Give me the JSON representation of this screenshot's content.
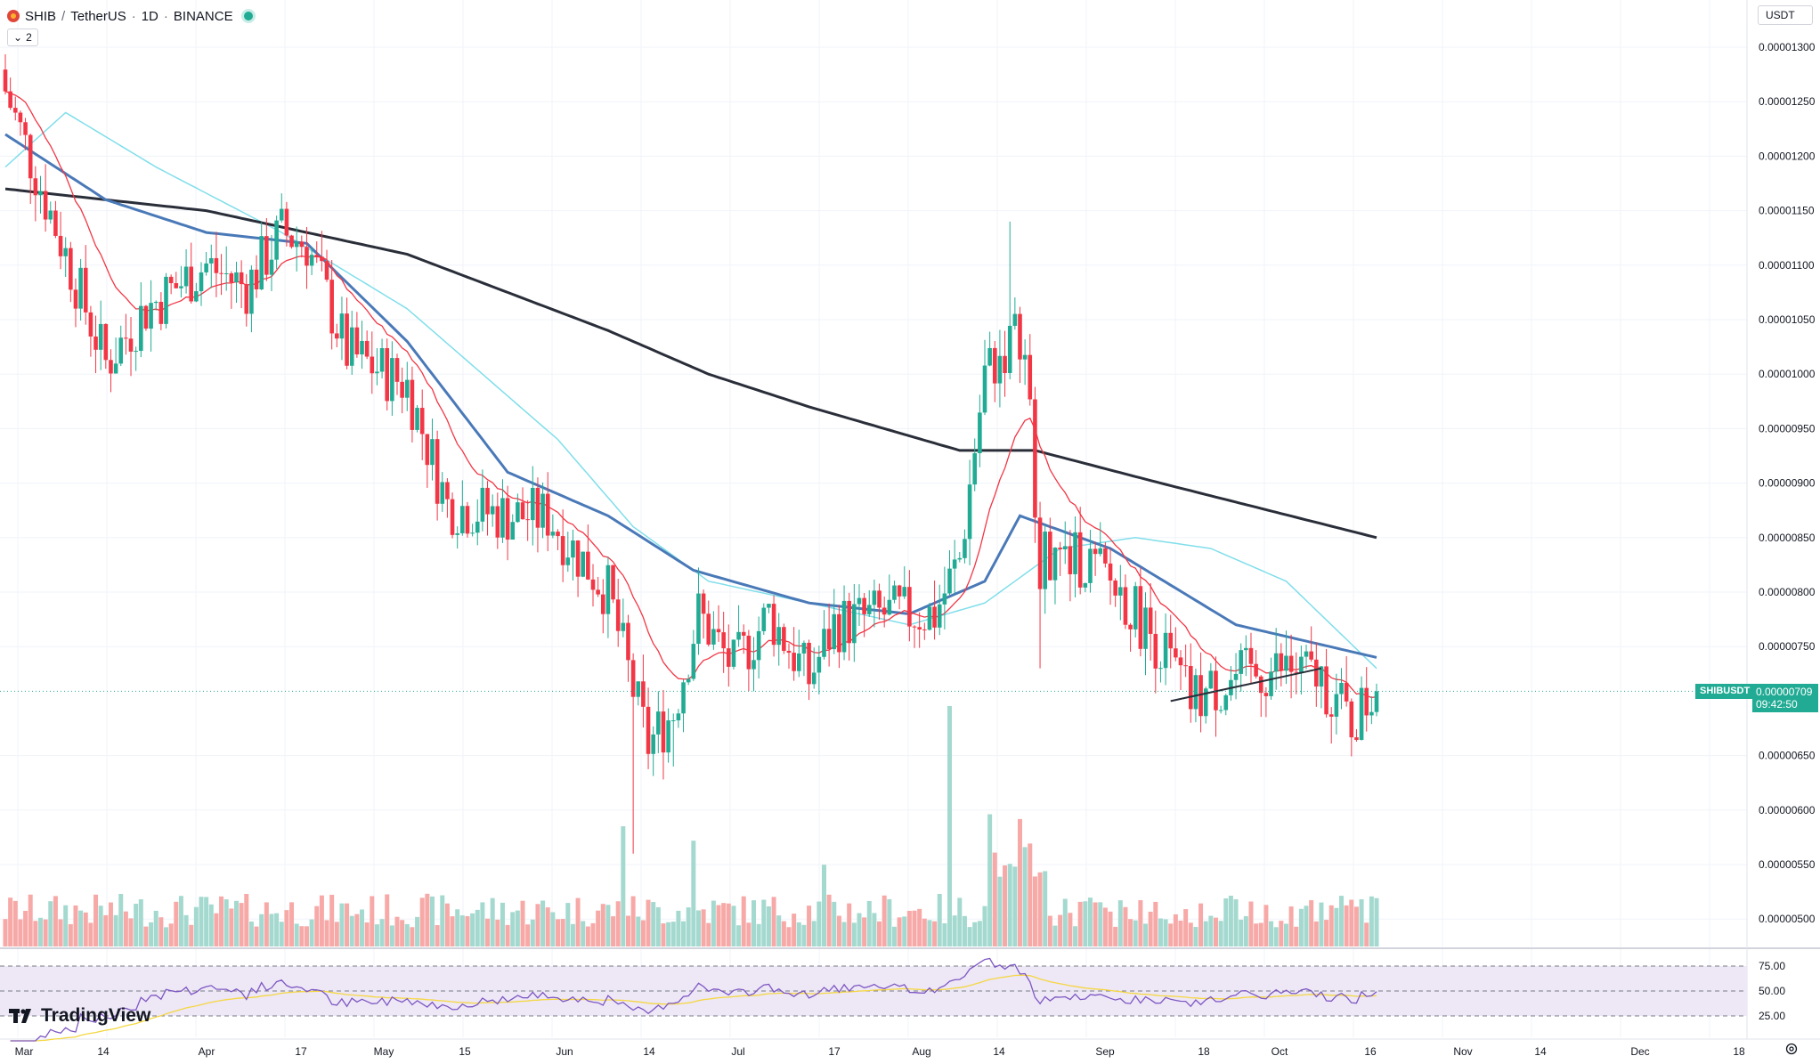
{
  "header": {
    "symbol": "SHIB",
    "pair": "TetherUS",
    "interval": "1D",
    "exchange": "BINANCE",
    "indicator_count": "2"
  },
  "currency_selector": "USDT",
  "last_price": {
    "symbol_label": "SHIBUSDT",
    "value": "0.00000709",
    "countdown": "09:42:50"
  },
  "price_axis_labels": [
    "0.00001300",
    "0.00001250",
    "0.00001200",
    "0.00001150",
    "0.00001100",
    "0.00001050",
    "0.00001000",
    "0.00000950",
    "0.00000900",
    "0.00000850",
    "0.00000800",
    "0.00000750",
    "0.00000650",
    "0.00000600",
    "0.00000550",
    "0.00000500"
  ],
  "rsi_axis_labels": [
    "75.00",
    "50.00",
    "25.00"
  ],
  "time_axis_labels": [
    "Mar",
    "14",
    "Apr",
    "17",
    "May",
    "15",
    "Jun",
    "14",
    "Jul",
    "17",
    "Aug",
    "14",
    "Sep",
    "18",
    "Oct",
    "16",
    "Nov",
    "14",
    "Dec",
    "18"
  ],
  "branding": {
    "name": "TradingView"
  },
  "colors": {
    "up": "#22ab94",
    "down": "#f23645",
    "ma_fast": "#f23645",
    "ma_mid": "#4a79b8",
    "ma_light": "#80deea",
    "ma_slow": "#2a2e39",
    "rsi_line": "#7e57c2",
    "rsi_ma": "#f5d742",
    "rsi_band": "#ede7f6"
  },
  "icons": {
    "settings": "gear-icon",
    "symbol": "shib-logo-icon",
    "status": "market-open-dot"
  },
  "chart_data": {
    "type": "candlestick",
    "x_range_days": {
      "first": "2023-02-28",
      "last_candle": "2023-10-16"
    },
    "ylim": [
      4.5e-06,
      1.33e-05
    ],
    "milestones": [
      {
        "day": 0,
        "close": 1.26e-05
      },
      {
        "day": 8,
        "close": 1.16e-05
      },
      {
        "day": 20,
        "close": 1.01e-05
      },
      {
        "day": 28,
        "close": 1.06e-05
      },
      {
        "day": 40,
        "close": 1.1e-05
      },
      {
        "day": 48,
        "close": 1.08e-05
      },
      {
        "day": 55,
        "close": 1.13e-05
      },
      {
        "day": 60,
        "close": 1.12e-05
      },
      {
        "day": 68,
        "close": 1.02e-05
      },
      {
        "day": 80,
        "close": 9.9e-06
      },
      {
        "day": 88,
        "close": 8.8e-06
      },
      {
        "day": 100,
        "close": 8.7e-06
      },
      {
        "day": 108,
        "close": 8.7e-06
      },
      {
        "day": 113,
        "close": 8.4e-06
      },
      {
        "day": 120,
        "close": 8e-06
      },
      {
        "day": 125,
        "close": 7.1e-06
      },
      {
        "day": 128,
        "close": 6.6e-06
      },
      {
        "day": 133,
        "close": 6.9e-06
      },
      {
        "day": 138,
        "close": 7.8e-06
      },
      {
        "day": 145,
        "close": 7.3e-06
      },
      {
        "day": 152,
        "close": 7.8e-06
      },
      {
        "day": 160,
        "close": 7.2e-06
      },
      {
        "day": 165,
        "close": 7.7e-06
      },
      {
        "day": 175,
        "close": 7.8e-06
      },
      {
        "day": 185,
        "close": 7.8e-06
      },
      {
        "day": 190,
        "close": 8.3e-06
      },
      {
        "day": 195,
        "close": 1e-05
      },
      {
        "day": 202,
        "close": 1.04e-05
      },
      {
        "day": 204,
        "close": 9.6e-06
      },
      {
        "day": 206,
        "close": 8.3e-06
      },
      {
        "day": 215,
        "close": 8.3e-06
      },
      {
        "day": 222,
        "close": 8e-06
      },
      {
        "day": 230,
        "close": 7.5e-06
      },
      {
        "day": 236,
        "close": 7e-06
      },
      {
        "day": 245,
        "close": 7.2e-06
      },
      {
        "day": 255,
        "close": 7.3e-06
      },
      {
        "day": 262,
        "close": 7.2e-06
      },
      {
        "day": 268,
        "close": 6.8e-06
      },
      {
        "day": 273,
        "close": 7.09e-06
      }
    ],
    "ma_slow_points": [
      [
        0,
        1.17e-05
      ],
      [
        40,
        1.15e-05
      ],
      [
        80,
        1.11e-05
      ],
      [
        120,
        1.04e-05
      ],
      [
        140,
        1e-05
      ],
      [
        160,
        9.7e-06
      ],
      [
        190,
        9.3e-06
      ],
      [
        205,
        9.3e-06
      ],
      [
        230,
        9e-06
      ],
      [
        273,
        8.5e-06
      ]
    ],
    "ma_mid_points": [
      [
        0,
        1.22e-05
      ],
      [
        20,
        1.16e-05
      ],
      [
        40,
        1.13e-05
      ],
      [
        60,
        1.12e-05
      ],
      [
        80,
        1.03e-05
      ],
      [
        100,
        9.1e-06
      ],
      [
        120,
        8.7e-06
      ],
      [
        137,
        8.2e-06
      ],
      [
        160,
        7.9e-06
      ],
      [
        180,
        7.8e-06
      ],
      [
        195,
        8.1e-06
      ],
      [
        202,
        8.7e-06
      ],
      [
        220,
        8.4e-06
      ],
      [
        245,
        7.7e-06
      ],
      [
        273,
        7.4e-06
      ]
    ],
    "ma_light_points": [
      [
        0,
        1.19e-05
      ],
      [
        12,
        1.24e-05
      ],
      [
        30,
        1.19e-05
      ],
      [
        55,
        1.13e-05
      ],
      [
        80,
        1.06e-05
      ],
      [
        110,
        9.4e-06
      ],
      [
        125,
        8.6e-06
      ],
      [
        140,
        8.1e-06
      ],
      [
        160,
        7.9e-06
      ],
      [
        180,
        7.7e-06
      ],
      [
        195,
        7.9e-06
      ],
      [
        210,
        8.4e-06
      ],
      [
        225,
        8.5e-06
      ],
      [
        240,
        8.4e-06
      ],
      [
        255,
        8.1e-06
      ],
      [
        273,
        7.3e-06
      ]
    ],
    "trendline": [
      [
        232,
        7e-06
      ],
      [
        262,
        7.3e-06
      ]
    ],
    "volume_spikes": [
      {
        "day": 123,
        "rel": 0.5
      },
      {
        "day": 188,
        "rel": 1.0
      },
      {
        "day": 196,
        "rel": 0.55
      },
      {
        "day": 202,
        "rel": 0.53
      },
      {
        "day": 137,
        "rel": 0.44
      },
      {
        "day": 163,
        "rel": 0.34
      }
    ],
    "rsi_range": [
      0,
      100
    ],
    "rsi_levels": [
      70,
      50,
      30
    ]
  }
}
